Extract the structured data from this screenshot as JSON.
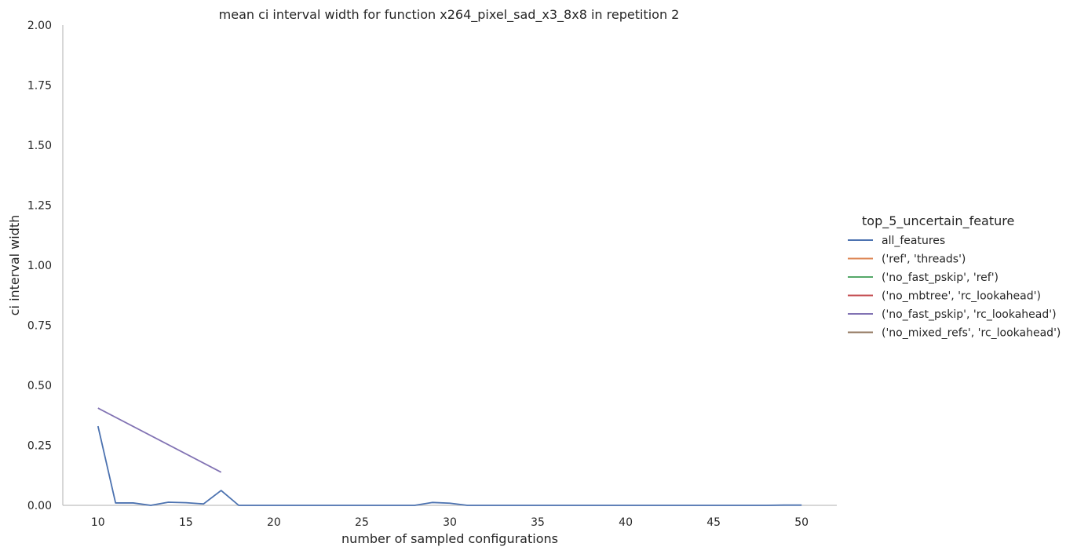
{
  "chart_data": {
    "type": "line",
    "title": "mean ci interval width for function x264_pixel_sad_x3_8x8 in repetition 2",
    "xlabel": "number of sampled configurations",
    "ylabel": "ci interval width",
    "xlim": [
      8,
      52
    ],
    "ylim": [
      0,
      2
    ],
    "xticks": [
      10,
      15,
      20,
      25,
      30,
      35,
      40,
      45,
      50
    ],
    "xtick_labels": [
      "10",
      "15",
      "20",
      "25",
      "30",
      "35",
      "40",
      "45",
      "50"
    ],
    "yticks": [
      0,
      0.25,
      0.5,
      0.75,
      1.0,
      1.25,
      1.5,
      1.75,
      2.0
    ],
    "ytick_labels": [
      "0.00",
      "0.25",
      "0.50",
      "0.75",
      "1.00",
      "1.25",
      "1.50",
      "1.75",
      "2.00"
    ],
    "grid": false,
    "legend_title": "top_5_uncertain_feature",
    "legend_position": "right",
    "series": [
      {
        "name": "all_features",
        "color": "#4c72b0",
        "x": [
          10,
          11,
          12,
          13,
          14,
          15,
          16,
          17,
          18,
          19,
          20,
          21,
          22,
          23,
          24,
          25,
          26,
          27,
          28,
          29,
          30,
          31,
          32,
          33,
          34,
          35,
          36,
          37,
          38,
          39,
          40,
          41,
          42,
          43,
          44,
          45,
          46,
          47,
          48,
          49,
          50
        ],
        "y": [
          0.33,
          0.01,
          0.01,
          0.0,
          0.013,
          0.011,
          0.006,
          0.062,
          0.0,
          0.0,
          0.0,
          0.0,
          0.0,
          0.0,
          0.0,
          0.0,
          0.0,
          0.0,
          0.0,
          0.012,
          0.009,
          0.0,
          0.0,
          0.0,
          0.0,
          0.0,
          0.0,
          0.0,
          0.0,
          0.0,
          0.0,
          0.0,
          0.0,
          0.0,
          0.0,
          0.0,
          0.0,
          0.0,
          0.0,
          0.001,
          0.001
        ]
      },
      {
        "name": "('ref', 'threads')",
        "color": "#dd8452",
        "x": [],
        "y": []
      },
      {
        "name": "('no_fast_pskip', 'ref')",
        "color": "#55a868",
        "x": [],
        "y": []
      },
      {
        "name": "('no_mbtree', 'rc_lookahead')",
        "color": "#c44e52",
        "x": [],
        "y": []
      },
      {
        "name": "('no_fast_pskip', 'rc_lookahead')",
        "color": "#8172b3",
        "x": [
          10,
          17
        ],
        "y": [
          0.405,
          0.138
        ]
      },
      {
        "name": "('no_mixed_refs', 'rc_lookahead')",
        "color": "#937860",
        "x": [],
        "y": []
      }
    ]
  }
}
